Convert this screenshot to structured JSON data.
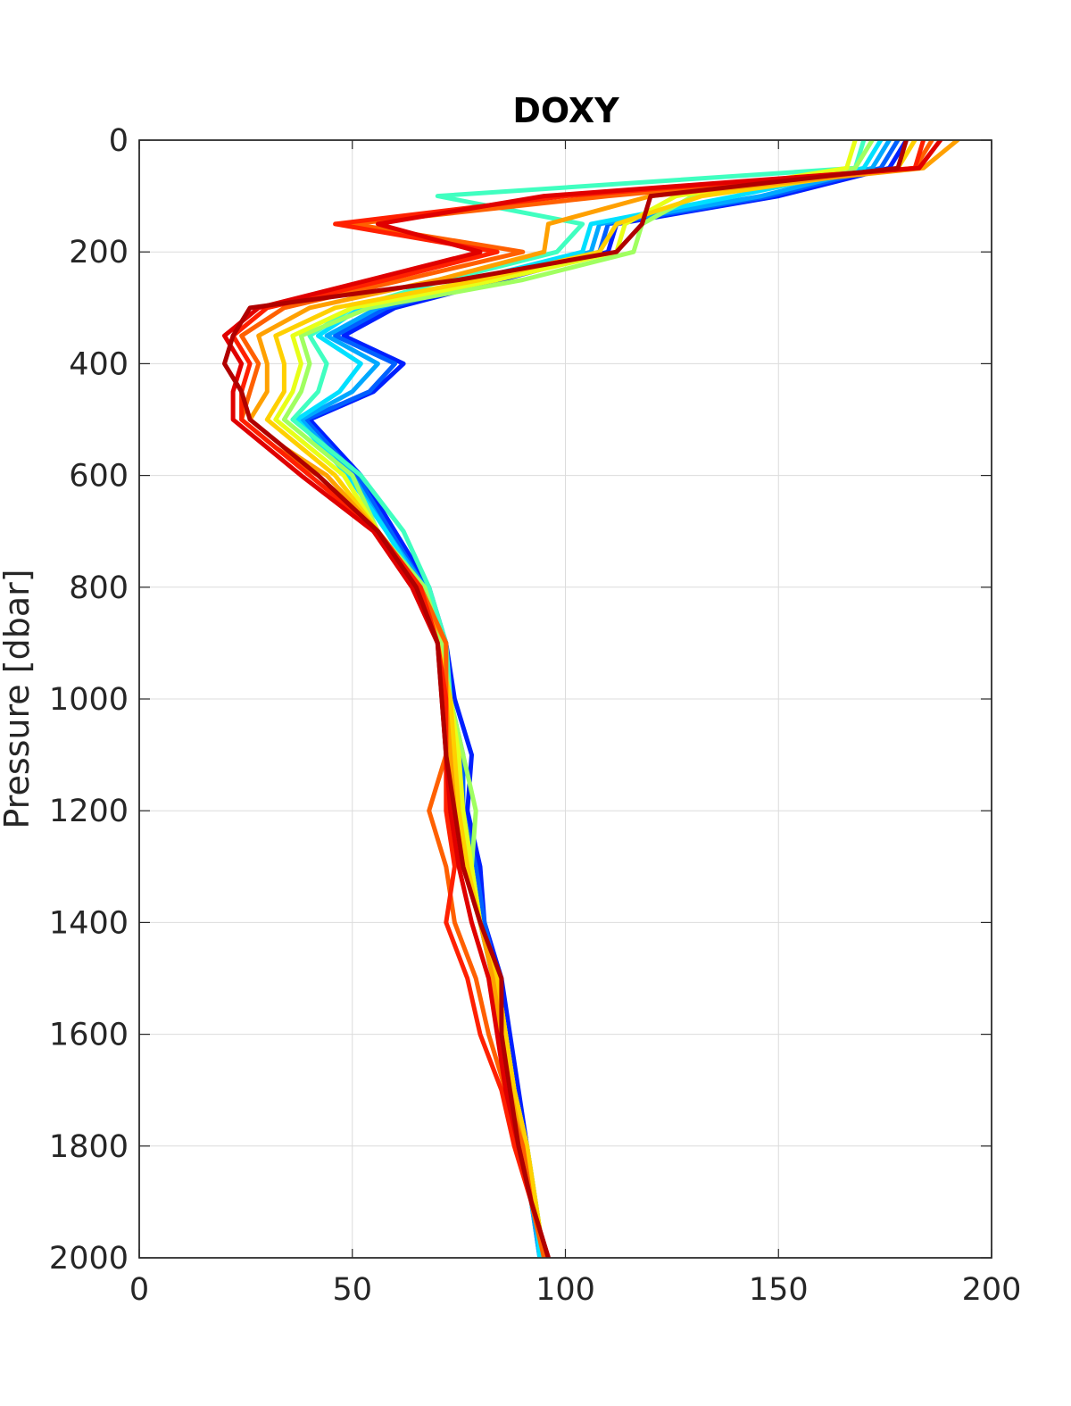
{
  "chart_data": {
    "type": "line",
    "title": "DOXY",
    "xlabel": "",
    "ylabel": "Pressure [dbar]",
    "xlim": [
      0,
      200
    ],
    "ylim": [
      0,
      2000
    ],
    "y_reversed": true,
    "grid": true,
    "x_ticks": [
      "0",
      "50",
      "100",
      "150",
      "200"
    ],
    "y_ticks": [
      "0",
      "200",
      "400",
      "600",
      "800",
      "1000",
      "1200",
      "1400",
      "1600",
      "1800",
      "2000"
    ],
    "y_key": [
      0,
      50,
      100,
      150,
      200,
      250,
      300,
      350,
      400,
      450,
      500,
      550,
      600,
      700,
      800,
      900,
      1000,
      1100,
      1200,
      1300,
      1400,
      1500,
      1600,
      1700,
      1800,
      1900,
      2000
    ],
    "series": [
      {
        "color": "#0020ff",
        "values": [
          180,
          176,
          150,
          112,
          110,
          85,
          60,
          48,
          62,
          55,
          40,
          46,
          52,
          60,
          68,
          72,
          74,
          78,
          77,
          80,
          81,
          85,
          87,
          89,
          91,
          93,
          95
        ]
      },
      {
        "color": "#0060ff",
        "values": [
          178,
          174,
          148,
          110,
          108,
          83,
          58,
          46,
          60,
          54,
          39,
          45,
          51,
          59,
          67,
          71,
          73,
          76,
          76,
          79,
          81,
          84,
          86,
          88,
          90,
          92,
          94
        ]
      },
      {
        "color": "#00a8ff",
        "values": [
          176,
          172,
          146,
          108,
          106,
          80,
          56,
          44,
          56,
          50,
          38,
          44,
          50,
          58,
          67,
          70,
          72,
          75,
          75,
          78,
          80,
          83,
          86,
          88,
          90,
          92,
          94
        ]
      },
      {
        "color": "#00e0ff",
        "values": [
          174,
          170,
          140,
          106,
          104,
          78,
          52,
          42,
          52,
          47,
          37,
          43,
          49,
          58,
          66,
          70,
          72,
          74,
          75,
          78,
          80,
          83,
          86,
          88,
          91,
          93,
          94
        ]
      },
      {
        "color": "#40ffc0",
        "values": [
          170,
          168,
          70,
          104,
          98,
          72,
          50,
          40,
          44,
          42,
          36,
          44,
          52,
          62,
          68,
          72,
          73,
          74,
          76,
          78,
          80,
          84,
          86,
          88,
          91,
          93,
          95
        ]
      },
      {
        "color": "#a0ff60",
        "values": [
          172,
          168,
          130,
          118,
          116,
          90,
          54,
          38,
          40,
          38,
          34,
          42,
          50,
          56,
          67,
          71,
          73,
          76,
          79,
          78,
          80,
          84,
          86,
          88,
          91,
          93,
          95
        ]
      },
      {
        "color": "#e8ff18",
        "values": [
          168,
          166,
          126,
          114,
          112,
          84,
          50,
          36,
          38,
          36,
          32,
          40,
          48,
          56,
          66,
          70,
          73,
          75,
          76,
          78,
          80,
          84,
          86,
          88,
          91,
          93,
          95
        ]
      },
      {
        "color": "#ffd000",
        "values": [
          182,
          178,
          132,
          112,
          108,
          80,
          46,
          32,
          34,
          34,
          30,
          38,
          46,
          56,
          66,
          70,
          73,
          74,
          75,
          77,
          80,
          84,
          86,
          88,
          91,
          93,
          95
        ]
      },
      {
        "color": "#ffa000",
        "values": [
          192,
          184,
          120,
          96,
          95,
          70,
          40,
          28,
          30,
          30,
          26,
          34,
          44,
          56,
          65,
          72,
          72,
          73,
          74,
          76,
          80,
          83,
          85,
          87,
          90,
          92,
          95
        ]
      },
      {
        "color": "#ff6000",
        "values": [
          186,
          182,
          110,
          50,
          90,
          62,
          34,
          24,
          28,
          26,
          24,
          32,
          42,
          56,
          66,
          72,
          72,
          72,
          68,
          72,
          74,
          79,
          82,
          86,
          90,
          92,
          95
        ]
      },
      {
        "color": "#ff2000",
        "values": [
          184,
          182,
          100,
          46,
          84,
          58,
          30,
          22,
          26,
          24,
          24,
          32,
          40,
          56,
          66,
          70,
          72,
          72,
          72,
          74,
          72,
          77,
          80,
          85,
          88,
          92,
          96
        ]
      },
      {
        "color": "#e00000",
        "values": [
          188,
          183,
          95,
          56,
          80,
          54,
          28,
          20,
          24,
          22,
          22,
          30,
          38,
          55,
          64,
          70,
          71,
          72,
          73,
          75,
          78,
          82,
          84,
          86,
          89,
          92,
          96
        ]
      },
      {
        "color": "#b00000",
        "values": [
          180,
          178,
          120,
          118,
          112,
          75,
          26,
          22,
          20,
          24,
          26,
          34,
          42,
          56,
          65,
          70,
          71,
          72,
          74,
          76,
          80,
          85,
          85,
          87,
          89,
          92,
          96
        ]
      }
    ]
  }
}
